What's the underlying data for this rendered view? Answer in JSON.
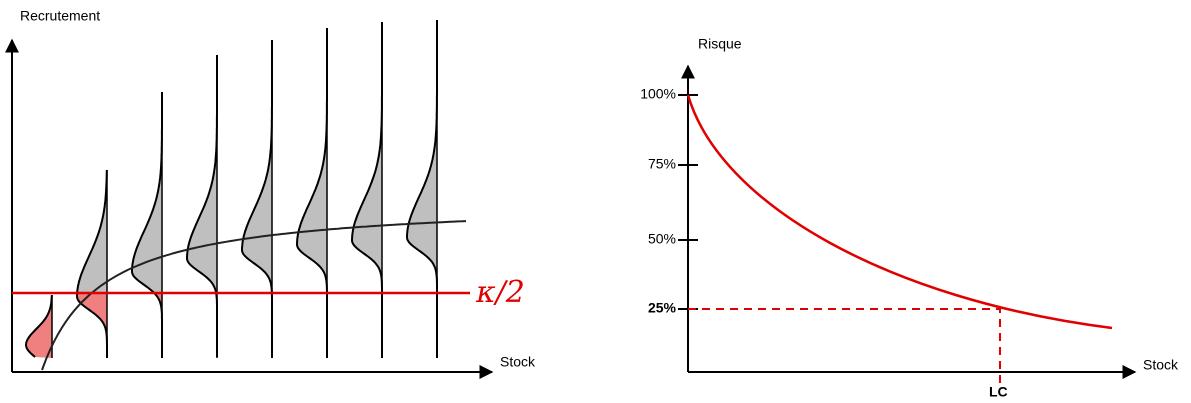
{
  "left": {
    "y_label": "Recrutement",
    "x_label": "Stock",
    "threshold_label": "κ/2"
  },
  "right": {
    "y_label": "Risque",
    "x_label": "Stock",
    "ticks": [
      "100%",
      "75%",
      "50%",
      "25%"
    ],
    "marker_label": "LC"
  }
}
